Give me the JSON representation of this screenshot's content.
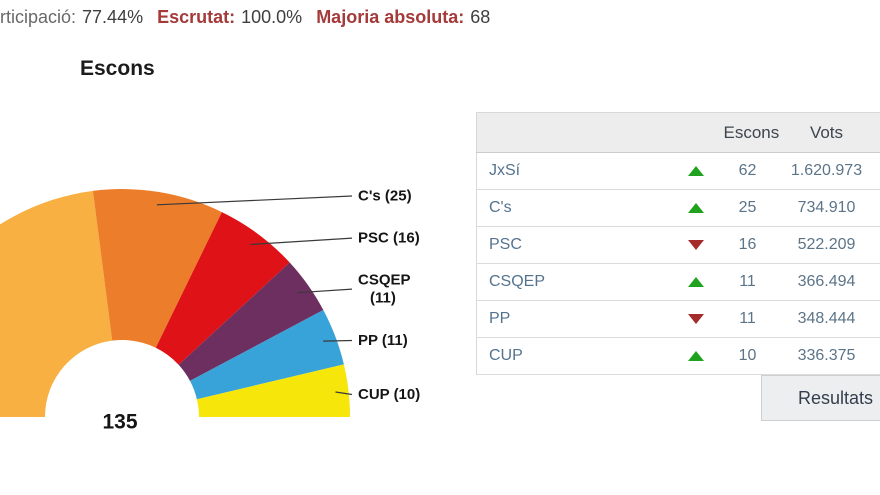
{
  "topbar": {
    "participation_label": "rticipació:",
    "participation_value": "77.44%",
    "escrutat_label": "Escrutat:",
    "escrutat_value": "100.0%",
    "majoria_label": "Majoria absoluta:",
    "majoria_value": "68"
  },
  "chart_data": {
    "type": "pie",
    "variant": "semicircle-donut",
    "title": "Escons",
    "total_seats": 135,
    "total_label": "135",
    "legend_position": "right",
    "series": [
      {
        "name": "JxSí",
        "seats": 62,
        "color": "#F8B042",
        "label": ""
      },
      {
        "name": "C's",
        "seats": 25,
        "color": "#EC7E2B",
        "label": "C's (25)"
      },
      {
        "name": "PSC",
        "seats": 16,
        "color": "#DF1317",
        "label": "PSC (16)"
      },
      {
        "name": "CSQEP",
        "seats": 11,
        "color": "#6C2F60",
        "label_lines": [
          "CSQEP",
          "(11)"
        ]
      },
      {
        "name": "PP",
        "seats": 11,
        "color": "#38A3D8",
        "label": "PP (11)"
      },
      {
        "name": "CUP",
        "seats": 10,
        "color": "#F6E609",
        "label": "CUP (10)"
      }
    ]
  },
  "table": {
    "col_escons": "Escons",
    "col_vots": "Vots",
    "trend_colors": {
      "up": "#1FA31F",
      "down": "#A52C2C"
    },
    "rows": [
      {
        "party": "JxSí",
        "trend": "up",
        "escons": "62",
        "vots": "1.620.973"
      },
      {
        "party": "C's",
        "trend": "up",
        "escons": "25",
        "vots": "734.910"
      },
      {
        "party": "PSC",
        "trend": "down",
        "escons": "16",
        "vots": "522.209"
      },
      {
        "party": "CSQEP",
        "trend": "up",
        "escons": "11",
        "vots": "366.494"
      },
      {
        "party": "PP",
        "trend": "down",
        "escons": "11",
        "vots": "348.444"
      },
      {
        "party": "CUP",
        "trend": "up",
        "escons": "10",
        "vots": "336.375"
      }
    ]
  },
  "button": {
    "label": "Resultats"
  }
}
